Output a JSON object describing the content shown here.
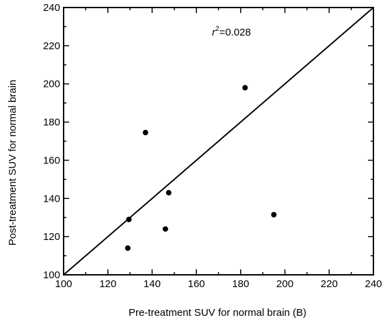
{
  "chart_data": {
    "type": "scatter",
    "title": "",
    "xlabel": "Pre-treatment SUV for normal brain (B)",
    "ylabel": "Post-treatment SUV for normal brain",
    "xlim": [
      100,
      240
    ],
    "ylim": [
      100,
      240
    ],
    "xticks": [
      100,
      120,
      140,
      160,
      180,
      200,
      220,
      240
    ],
    "yticks": [
      100,
      120,
      140,
      160,
      180,
      200,
      220,
      240
    ],
    "grid": false,
    "series": [
      {
        "points": [
          {
            "x": 129,
            "y": 114
          },
          {
            "x": 129.5,
            "y": 129
          },
          {
            "x": 137,
            "y": 174.5
          },
          {
            "x": 146,
            "y": 124
          },
          {
            "x": 147.5,
            "y": 143
          },
          {
            "x": 182,
            "y": 198
          },
          {
            "x": 195,
            "y": 131.5
          }
        ]
      }
    ],
    "reference_line": {
      "from": [
        100,
        100
      ],
      "to": [
        240,
        240
      ]
    },
    "annotation": {
      "r_symbol": "r",
      "superscript": "2",
      "value_text": "=0.028"
    },
    "colors": {
      "axis": "#000000",
      "marker": "#000000",
      "background": "#ffffff"
    }
  }
}
